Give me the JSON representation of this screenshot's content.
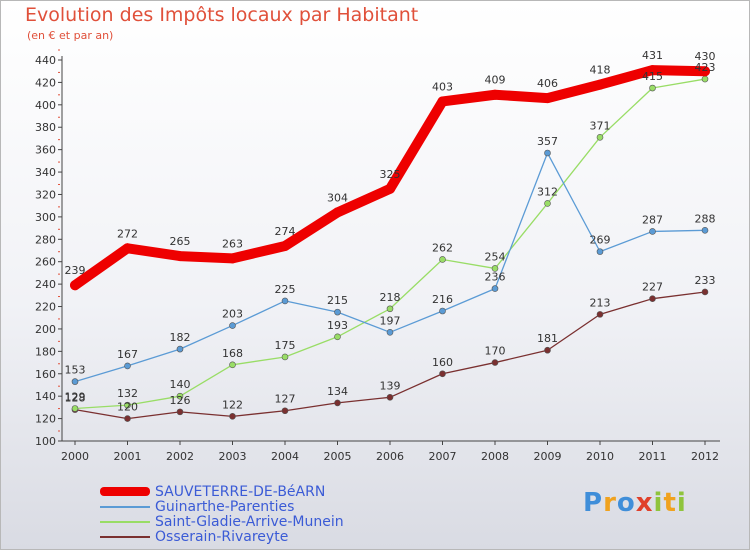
{
  "chart_data": {
    "type": "line",
    "title": "Evolution des Impôts locaux par Habitant",
    "subtitle": "(en € et par an)",
    "x": [
      "2000",
      "2001",
      "2002",
      "2003",
      "2004",
      "2005",
      "2006",
      "2007",
      "2008",
      "2009",
      "2010",
      "2011",
      "2012"
    ],
    "ylim": [
      100,
      440
    ],
    "yticks": [
      "100",
      "120",
      "140",
      "160",
      "180",
      "200",
      "220",
      "240",
      "260",
      "280",
      "300",
      "320",
      "340",
      "360",
      "380",
      "400",
      "420",
      "440"
    ],
    "grid": false,
    "legend_position": "bottom-left",
    "series": [
      {
        "name": "SAUVETERRE-DE-BéARN",
        "color": "#ee0000",
        "width": 10,
        "values": [
          239,
          272,
          265,
          263,
          274,
          304,
          325,
          403,
          409,
          406,
          418,
          431,
          430
        ],
        "labels": [
          "239",
          "272",
          "265",
          "263",
          "274",
          "304",
          "325",
          "403",
          "409",
          "406",
          "418",
          "431",
          "430"
        ]
      },
      {
        "name": "Guinarthe-Parenties",
        "color": "#5b9bd5",
        "width": 1.3,
        "values": [
          153,
          167,
          182,
          203,
          225,
          215,
          197,
          216,
          236,
          357,
          269,
          287,
          288
        ],
        "labels": [
          "153",
          "167",
          "182",
          "203",
          "225",
          "215",
          "197",
          "216",
          "236",
          "357",
          "269",
          "287",
          "288"
        ]
      },
      {
        "name": "Saint-Gladie-Arrive-Munein",
        "color": "#99dd66",
        "width": 1.3,
        "values": [
          129,
          132,
          140,
          168,
          175,
          193,
          218,
          262,
          254,
          312,
          371,
          415,
          423
        ],
        "labels": [
          "129",
          "132",
          "140",
          "168",
          "175",
          "193",
          "218",
          "262",
          "254",
          "312",
          "371",
          "415",
          "423"
        ]
      },
      {
        "name": "Osserain-Rivareyte",
        "color": "#7a3030",
        "width": 1.3,
        "values": [
          128,
          120,
          126,
          122,
          127,
          134,
          139,
          160,
          170,
          181,
          213,
          227,
          233
        ],
        "labels": [
          "128",
          "120",
          "126",
          "122",
          "127",
          "134",
          "139",
          "160",
          "170",
          "181",
          "213",
          "227",
          "233"
        ]
      }
    ]
  },
  "logo": {
    "text": "Proxiti",
    "letters": [
      "P",
      "r",
      "o",
      "x",
      "i",
      "t",
      "i"
    ],
    "colors": [
      "#3f8ed9",
      "#f0a21e",
      "#3f8ed9",
      "#e0402a",
      "#8fc43c",
      "#f0a21e",
      "#8fc43c"
    ]
  }
}
